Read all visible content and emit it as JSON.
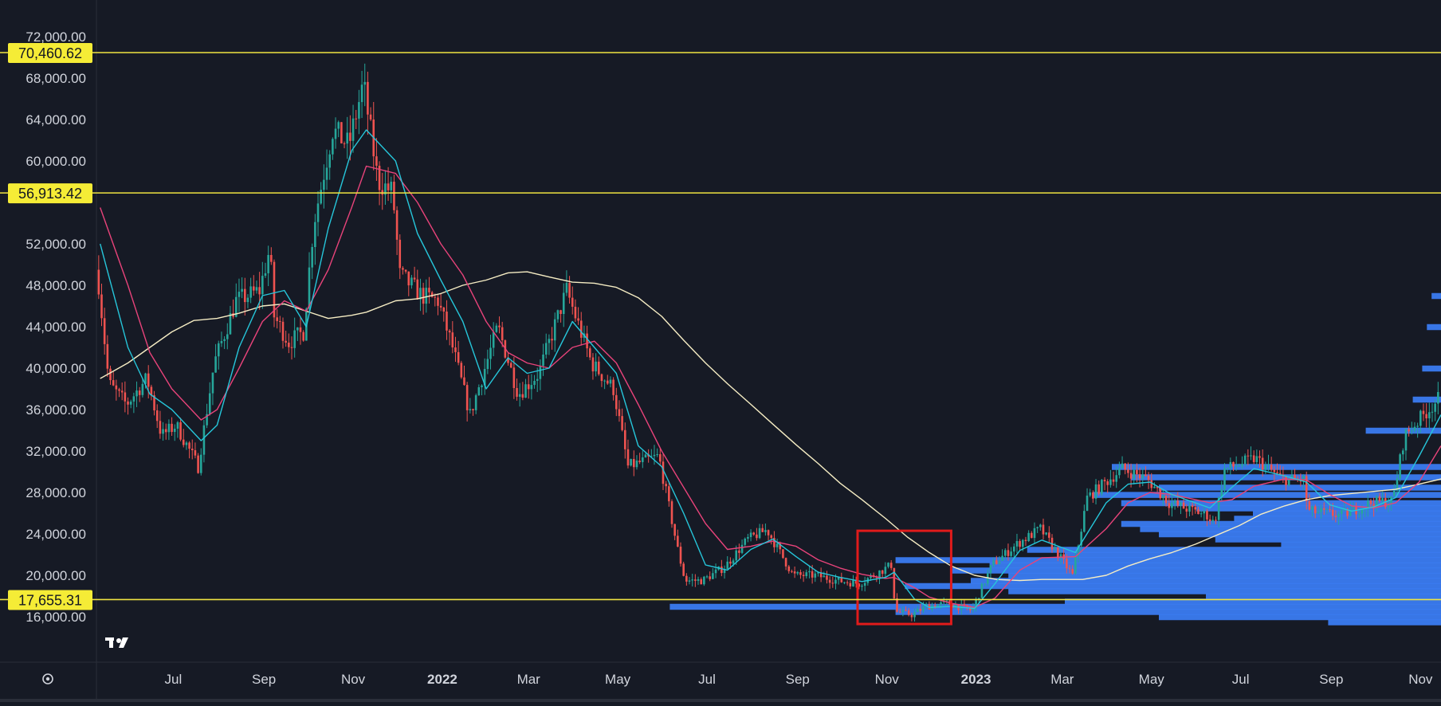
{
  "chart_data": {
    "type": "candlestick",
    "title": "",
    "x_ticks": [
      {
        "label": "Jul",
        "date": "2021-07-01",
        "bold": false
      },
      {
        "label": "Sep",
        "date": "2021-09-01",
        "bold": false
      },
      {
        "label": "Nov",
        "date": "2021-11-01",
        "bold": false
      },
      {
        "label": "2022",
        "date": "2022-01-01",
        "bold": true
      },
      {
        "label": "Mar",
        "date": "2022-03-01",
        "bold": false
      },
      {
        "label": "May",
        "date": "2022-05-01",
        "bold": false
      },
      {
        "label": "Jul",
        "date": "2022-07-01",
        "bold": false
      },
      {
        "label": "Sep",
        "date": "2022-09-01",
        "bold": false
      },
      {
        "label": "Nov",
        "date": "2022-11-01",
        "bold": false
      },
      {
        "label": "2023",
        "date": "2023-01-01",
        "bold": true
      },
      {
        "label": "Mar",
        "date": "2023-03-01",
        "bold": false
      },
      {
        "label": "May",
        "date": "2023-05-01",
        "bold": false
      },
      {
        "label": "Jul",
        "date": "2023-07-01",
        "bold": false
      },
      {
        "label": "Sep",
        "date": "2023-09-01",
        "bold": false
      },
      {
        "label": "Nov",
        "date": "2023-11-01",
        "bold": false
      }
    ],
    "y_ticks": [
      "72,000.00",
      "68,000.00",
      "64,000.00",
      "60,000.00",
      "52,000.00",
      "48,000.00",
      "44,000.00",
      "40,000.00",
      "36,000.00",
      "32,000.00",
      "28,000.00",
      "24,000.00",
      "20,000.00",
      "16,000.00"
    ],
    "y_tick_values": [
      72000,
      68000,
      64000,
      60000,
      52000,
      48000,
      44000,
      40000,
      36000,
      32000,
      28000,
      24000,
      20000,
      16000
    ],
    "ylim": [
      12000,
      76000
    ],
    "xlim": [
      "2021-05-10",
      "2023-11-15"
    ],
    "horizontal_levels": [
      {
        "label": "70,460.62",
        "value": 70460.62,
        "color": "#f0e442"
      },
      {
        "label": "56,913.42",
        "value": 56913.42,
        "color": "#f0e442"
      },
      {
        "label": "17,655.31",
        "value": 17655.31,
        "color": "#f0e442"
      }
    ],
    "highlight_box": {
      "x0": "2022-10-12",
      "x1": "2022-12-15",
      "y0": 24300,
      "y1": 15300,
      "color": "#e01b1b"
    },
    "price_path": [
      [
        "2021-05-12",
        49500
      ],
      [
        "2021-05-20",
        38500
      ],
      [
        "2021-06-01",
        36500
      ],
      [
        "2021-06-15",
        39000
      ],
      [
        "2021-06-25",
        33500
      ],
      [
        "2021-07-05",
        34500
      ],
      [
        "2021-07-20",
        30500
      ],
      [
        "2021-07-31",
        40500
      ],
      [
        "2021-08-15",
        46500
      ],
      [
        "2021-08-31",
        47500
      ],
      [
        "2021-09-07",
        51500
      ],
      [
        "2021-09-10",
        45000
      ],
      [
        "2021-09-20",
        42500
      ],
      [
        "2021-09-30",
        43500
      ],
      [
        "2021-10-07",
        54000
      ],
      [
        "2021-10-20",
        63000
      ],
      [
        "2021-10-31",
        61500
      ],
      [
        "2021-11-10",
        67500
      ],
      [
        "2021-11-20",
        58000
      ],
      [
        "2021-11-30",
        57000
      ],
      [
        "2021-12-05",
        49000
      ],
      [
        "2021-12-20",
        47000
      ],
      [
        "2021-12-31",
        46500
      ],
      [
        "2022-01-10",
        42000
      ],
      [
        "2022-01-22",
        35500
      ],
      [
        "2022-02-10",
        44000
      ],
      [
        "2022-02-24",
        37500
      ],
      [
        "2022-03-10",
        39500
      ],
      [
        "2022-03-29",
        47500
      ],
      [
        "2022-04-15",
        40500
      ],
      [
        "2022-04-30",
        38000
      ],
      [
        "2022-05-10",
        30500
      ],
      [
        "2022-05-31",
        31500
      ],
      [
        "2022-06-13",
        22500
      ],
      [
        "2022-06-18",
        19500
      ],
      [
        "2022-06-30",
        19500
      ],
      [
        "2022-07-15",
        20800
      ],
      [
        "2022-07-31",
        23500
      ],
      [
        "2022-08-13",
        24400
      ],
      [
        "2022-08-31",
        20000
      ],
      [
        "2022-09-15",
        20000
      ],
      [
        "2022-09-30",
        19500
      ],
      [
        "2022-10-15",
        19200
      ],
      [
        "2022-10-31",
        20500
      ],
      [
        "2022-11-06",
        21000
      ],
      [
        "2022-11-09",
        16500
      ],
      [
        "2022-11-20",
        16200
      ],
      [
        "2022-11-30",
        17000
      ],
      [
        "2022-12-15",
        17300
      ],
      [
        "2022-12-31",
        16600
      ],
      [
        "2023-01-14",
        21000
      ],
      [
        "2023-01-31",
        23000
      ],
      [
        "2023-02-16",
        24500
      ],
      [
        "2023-03-10",
        20000
      ],
      [
        "2023-03-20",
        27500
      ],
      [
        "2023-04-13",
        30300
      ],
      [
        "2023-04-30",
        29300
      ],
      [
        "2023-05-15",
        27000
      ],
      [
        "2023-06-10",
        25800
      ],
      [
        "2023-06-15",
        25000
      ],
      [
        "2023-06-22",
        30200
      ],
      [
        "2023-07-13",
        31300
      ],
      [
        "2023-07-31",
        29300
      ],
      [
        "2023-08-15",
        29200
      ],
      [
        "2023-08-18",
        26200
      ],
      [
        "2023-09-10",
        25800
      ],
      [
        "2023-09-30",
        27000
      ],
      [
        "2023-10-15",
        27200
      ],
      [
        "2023-10-23",
        33500
      ],
      [
        "2023-11-15",
        37000
      ]
    ],
    "ma_fast": [
      [
        "2021-05-12",
        52000
      ],
      [
        "2021-05-31",
        42000
      ],
      [
        "2021-06-15",
        37500
      ],
      [
        "2021-06-30",
        36000
      ],
      [
        "2021-07-20",
        33000
      ],
      [
        "2021-07-31",
        34500
      ],
      [
        "2021-08-15",
        42000
      ],
      [
        "2021-08-31",
        47000
      ],
      [
        "2021-09-15",
        47500
      ],
      [
        "2021-09-30",
        44000
      ],
      [
        "2021-10-15",
        53500
      ],
      [
        "2021-10-31",
        61000
      ],
      [
        "2021-11-10",
        63000
      ],
      [
        "2021-11-30",
        60000
      ],
      [
        "2021-12-15",
        53000
      ],
      [
        "2021-12-31",
        48500
      ],
      [
        "2022-01-15",
        44500
      ],
      [
        "2022-01-31",
        38000
      ],
      [
        "2022-02-15",
        41000
      ],
      [
        "2022-02-28",
        39500
      ],
      [
        "2022-03-15",
        40000
      ],
      [
        "2022-03-31",
        44500
      ],
      [
        "2022-04-15",
        42000
      ],
      [
        "2022-04-30",
        39500
      ],
      [
        "2022-05-15",
        32500
      ],
      [
        "2022-05-31",
        30500
      ],
      [
        "2022-06-15",
        26000
      ],
      [
        "2022-06-30",
        21000
      ],
      [
        "2022-07-15",
        20500
      ],
      [
        "2022-07-31",
        22500
      ],
      [
        "2022-08-15",
        23500
      ],
      [
        "2022-08-31",
        21800
      ],
      [
        "2022-09-15",
        20300
      ],
      [
        "2022-09-30",
        19800
      ],
      [
        "2022-10-15",
        19400
      ],
      [
        "2022-10-31",
        19800
      ],
      [
        "2022-11-06",
        20300
      ],
      [
        "2022-11-20",
        17700
      ],
      [
        "2022-11-30",
        16900
      ],
      [
        "2022-12-15",
        17000
      ],
      [
        "2022-12-31",
        16800
      ],
      [
        "2023-01-14",
        19200
      ],
      [
        "2023-01-31",
        22400
      ],
      [
        "2023-02-15",
        23400
      ],
      [
        "2023-03-10",
        22200
      ],
      [
        "2023-03-31",
        27000
      ],
      [
        "2023-04-15",
        28800
      ],
      [
        "2023-04-30",
        29000
      ],
      [
        "2023-05-15",
        27800
      ],
      [
        "2023-06-10",
        26500
      ],
      [
        "2023-06-25",
        28500
      ],
      [
        "2023-07-10",
        30300
      ],
      [
        "2023-07-31",
        29600
      ],
      [
        "2023-08-15",
        29000
      ],
      [
        "2023-08-31",
        26800
      ],
      [
        "2023-09-15",
        26200
      ],
      [
        "2023-09-30",
        26600
      ],
      [
        "2023-10-15",
        27500
      ],
      [
        "2023-10-31",
        31500
      ],
      [
        "2023-11-15",
        35500
      ]
    ],
    "ma_mid": [
      [
        "2021-05-12",
        55500
      ],
      [
        "2021-05-31",
        48000
      ],
      [
        "2021-06-15",
        41500
      ],
      [
        "2021-06-30",
        38000
      ],
      [
        "2021-07-20",
        35000
      ],
      [
        "2021-07-31",
        36000
      ],
      [
        "2021-08-15",
        40000
      ],
      [
        "2021-08-31",
        44500
      ],
      [
        "2021-09-15",
        46500
      ],
      [
        "2021-09-30",
        45500
      ],
      [
        "2021-10-15",
        49500
      ],
      [
        "2021-10-31",
        55500
      ],
      [
        "2021-11-10",
        59500
      ],
      [
        "2021-11-30",
        58800
      ],
      [
        "2021-12-15",
        56000
      ],
      [
        "2021-12-31",
        52000
      ],
      [
        "2022-01-15",
        49000
      ],
      [
        "2022-01-31",
        44500
      ],
      [
        "2022-02-15",
        41500
      ],
      [
        "2022-02-28",
        40500
      ],
      [
        "2022-03-15",
        40000
      ],
      [
        "2022-03-31",
        42000
      ],
      [
        "2022-04-15",
        42600
      ],
      [
        "2022-04-30",
        40500
      ],
      [
        "2022-05-15",
        36500
      ],
      [
        "2022-05-31",
        32000
      ],
      [
        "2022-06-15",
        28500
      ],
      [
        "2022-06-30",
        25000
      ],
      [
        "2022-07-15",
        22500
      ],
      [
        "2022-07-31",
        22800
      ],
      [
        "2022-08-15",
        23300
      ],
      [
        "2022-08-31",
        22800
      ],
      [
        "2022-09-15",
        21500
      ],
      [
        "2022-09-30",
        20700
      ],
      [
        "2022-10-15",
        20100
      ],
      [
        "2022-10-31",
        19700
      ],
      [
        "2022-11-06",
        19800
      ],
      [
        "2022-11-20",
        18800
      ],
      [
        "2022-11-30",
        17900
      ],
      [
        "2022-12-15",
        17300
      ],
      [
        "2022-12-31",
        16900
      ],
      [
        "2023-01-14",
        17800
      ],
      [
        "2023-01-31",
        20500
      ],
      [
        "2023-02-15",
        21700
      ],
      [
        "2023-03-10",
        21800
      ],
      [
        "2023-03-31",
        24500
      ],
      [
        "2023-04-15",
        27000
      ],
      [
        "2023-04-30",
        28000
      ],
      [
        "2023-05-15",
        27800
      ],
      [
        "2023-06-10",
        27000
      ],
      [
        "2023-06-25",
        27300
      ],
      [
        "2023-07-10",
        28600
      ],
      [
        "2023-07-31",
        29300
      ],
      [
        "2023-08-15",
        29200
      ],
      [
        "2023-08-31",
        27800
      ],
      [
        "2023-09-15",
        26700
      ],
      [
        "2023-09-30",
        26500
      ],
      [
        "2023-10-15",
        27000
      ],
      [
        "2023-10-31",
        29000
      ],
      [
        "2023-11-15",
        32500
      ]
    ],
    "ma_slow": [
      [
        "2021-05-12",
        39000
      ],
      [
        "2021-05-31",
        40500
      ],
      [
        "2021-06-15",
        42000
      ],
      [
        "2021-06-30",
        43500
      ],
      [
        "2021-07-15",
        44600
      ],
      [
        "2021-07-31",
        44800
      ],
      [
        "2021-08-15",
        45300
      ],
      [
        "2021-08-31",
        46000
      ],
      [
        "2021-09-15",
        46200
      ],
      [
        "2021-09-30",
        45500
      ],
      [
        "2021-10-15",
        44800
      ],
      [
        "2021-10-31",
        45100
      ],
      [
        "2021-11-10",
        45400
      ],
      [
        "2021-11-30",
        46500
      ],
      [
        "2021-12-15",
        46700
      ],
      [
        "2021-12-31",
        47200
      ],
      [
        "2022-01-15",
        48000
      ],
      [
        "2022-01-31",
        48500
      ],
      [
        "2022-02-15",
        49200
      ],
      [
        "2022-02-28",
        49300
      ],
      [
        "2022-03-15",
        48800
      ],
      [
        "2022-03-31",
        48300
      ],
      [
        "2022-04-15",
        48200
      ],
      [
        "2022-04-30",
        47800
      ],
      [
        "2022-05-15",
        46800
      ],
      [
        "2022-05-31",
        45000
      ],
      [
        "2022-06-15",
        42700
      ],
      [
        "2022-06-30",
        40500
      ],
      [
        "2022-07-15",
        38500
      ],
      [
        "2022-07-31",
        36500
      ],
      [
        "2022-08-15",
        34600
      ],
      [
        "2022-08-31",
        32600
      ],
      [
        "2022-09-15",
        30800
      ],
      [
        "2022-09-30",
        28900
      ],
      [
        "2022-10-15",
        27300
      ],
      [
        "2022-10-31",
        25500
      ],
      [
        "2022-11-15",
        23700
      ],
      [
        "2022-11-30",
        22200
      ],
      [
        "2022-12-15",
        20900
      ],
      [
        "2022-12-31",
        20000
      ],
      [
        "2023-01-15",
        19600
      ],
      [
        "2023-01-31",
        19500
      ],
      [
        "2023-02-15",
        19600
      ],
      [
        "2023-02-28",
        19600
      ],
      [
        "2023-03-15",
        19600
      ],
      [
        "2023-03-31",
        20000
      ],
      [
        "2023-04-15",
        20900
      ],
      [
        "2023-04-30",
        21600
      ],
      [
        "2023-05-15",
        22200
      ],
      [
        "2023-05-31",
        23000
      ],
      [
        "2023-06-15",
        23900
      ],
      [
        "2023-06-30",
        24800
      ],
      [
        "2023-07-15",
        25900
      ],
      [
        "2023-07-31",
        26700
      ],
      [
        "2023-08-15",
        27300
      ],
      [
        "2023-08-31",
        27700
      ],
      [
        "2023-09-15",
        27900
      ],
      [
        "2023-09-30",
        28100
      ],
      [
        "2023-10-15",
        28300
      ],
      [
        "2023-10-31",
        28800
      ],
      [
        "2023-11-15",
        29300
      ]
    ],
    "volume_profile": [
      [
        30500,
        0.35
      ],
      [
        29500,
        0.33
      ],
      [
        28500,
        0.3
      ],
      [
        27800,
        0.37
      ],
      [
        27000,
        0.34
      ],
      [
        26500,
        0.26
      ],
      [
        26000,
        0.2
      ],
      [
        25500,
        0.22
      ],
      [
        25000,
        0.34
      ],
      [
        24500,
        0.32
      ],
      [
        24000,
        0.3
      ],
      [
        23500,
        0.24
      ],
      [
        23000,
        0.17
      ],
      [
        22500,
        0.44
      ],
      [
        22000,
        0.4
      ],
      [
        21500,
        0.58
      ],
      [
        21000,
        0.48
      ],
      [
        20500,
        0.52
      ],
      [
        20000,
        0.46
      ],
      [
        19500,
        0.5
      ],
      [
        19000,
        0.57
      ],
      [
        18500,
        0.46
      ],
      [
        18000,
        0.25
      ],
      [
        17500,
        0.4
      ],
      [
        17000,
        0.82
      ],
      [
        16500,
        0.58
      ],
      [
        16000,
        0.3
      ],
      [
        15500,
        0.12
      ],
      [
        34000,
        0.08
      ],
      [
        37000,
        0.03
      ],
      [
        40000,
        0.02
      ],
      [
        44000,
        0.015
      ],
      [
        47000,
        0.01
      ]
    ],
    "colors": {
      "up": "#26a69a",
      "down": "#ef5350",
      "ma_fast": "#26c6da",
      "ma_mid": "#e8437a",
      "ma_slow": "#f6edc4",
      "profile": "#3a7bf0"
    }
  },
  "ui": {
    "logo_text": "17",
    "settings_icon": "gear-icon"
  }
}
